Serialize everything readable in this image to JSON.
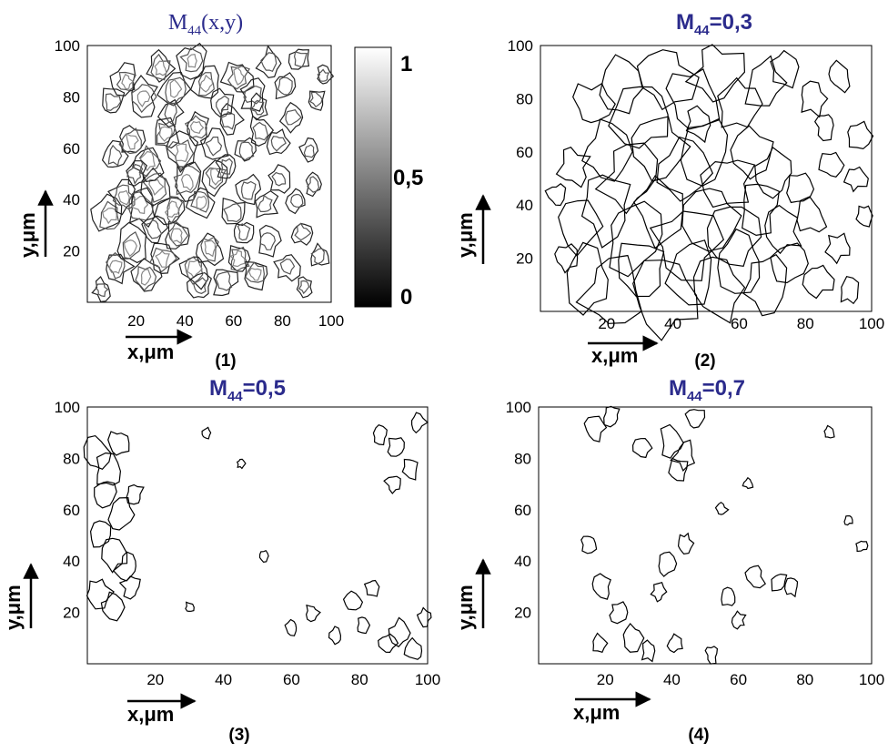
{
  "figure": {
    "panels": [
      {
        "title_base": "M",
        "title_sub": "44",
        "title_tail": "(x,y)",
        "label": "(1)"
      },
      {
        "title_base": "M",
        "title_sub": "44",
        "title_tail": "=0,3",
        "label": "(2)"
      },
      {
        "title_base": "M",
        "title_sub": "44",
        "title_tail": "=0,5",
        "label": "(3)"
      },
      {
        "title_base": "M",
        "title_sub": "44",
        "title_tail": "=0,7",
        "label": "(4)"
      }
    ],
    "xlabel": "x,μm",
    "ylabel": "y,μm",
    "colorbar": {
      "labels": [
        "1",
        "0,5",
        "0"
      ],
      "values": [
        1,
        0.5,
        0
      ]
    }
  },
  "colors": {
    "title": "#2b2b8c",
    "contour": "#000000",
    "axis": "#000000"
  },
  "chart_data": [
    {
      "type": "heatmap",
      "subtype": "contour map with grayscale colorbar",
      "title": "M44(x,y)",
      "xlabel": "x,μm",
      "ylabel": "y,μm",
      "xlim": [
        0,
        100
      ],
      "ylim": [
        0,
        100
      ],
      "xticks": [
        20,
        40,
        60,
        80,
        100
      ],
      "yticks": [
        20,
        40,
        60,
        80,
        100
      ],
      "colorbar": {
        "range": [
          0,
          1
        ],
        "ticks": [
          "0",
          "0,5",
          "1"
        ],
        "colormap": "gray"
      },
      "contour_blobs": [
        [
          12,
          14,
          2
        ],
        [
          18,
          22,
          2.4
        ],
        [
          24,
          10,
          2
        ],
        [
          31,
          17,
          2.2
        ],
        [
          37,
          26,
          2
        ],
        [
          44,
          13,
          2.3
        ],
        [
          50,
          21,
          2
        ],
        [
          56,
          8,
          1.8
        ],
        [
          62,
          17,
          2.1
        ],
        [
          69,
          11,
          2
        ],
        [
          74,
          24,
          1.8
        ],
        [
          82,
          14,
          1.7
        ],
        [
          88,
          27,
          1.6
        ],
        [
          95,
          18,
          1.4
        ],
        [
          9,
          34,
          2.2
        ],
        [
          15,
          41,
          2
        ],
        [
          22,
          38,
          2.5
        ],
        [
          28,
          45,
          2.2
        ],
        [
          35,
          36,
          2
        ],
        [
          41,
          47,
          2.4
        ],
        [
          47,
          39,
          2
        ],
        [
          53,
          49,
          2.1
        ],
        [
          60,
          35,
          1.9
        ],
        [
          66,
          44,
          1.8
        ],
        [
          73,
          38,
          1.7
        ],
        [
          79,
          48,
          1.6
        ],
        [
          86,
          40,
          1.5
        ],
        [
          93,
          46,
          1.4
        ],
        [
          11,
          57,
          1.9
        ],
        [
          18,
          63,
          2.1
        ],
        [
          25,
          55,
          2.2
        ],
        [
          32,
          66,
          2
        ],
        [
          39,
          58,
          2.3
        ],
        [
          45,
          68,
          2
        ],
        [
          52,
          61,
          1.9
        ],
        [
          58,
          71,
          1.8
        ],
        [
          65,
          59,
          1.7
        ],
        [
          71,
          67,
          1.9
        ],
        [
          78,
          62,
          1.6
        ],
        [
          84,
          72,
          1.7
        ],
        [
          91,
          59,
          1.4
        ],
        [
          10,
          78,
          1.9
        ],
        [
          16,
          86,
          2
        ],
        [
          23,
          80,
          2.2
        ],
        [
          30,
          91,
          2
        ],
        [
          36,
          83,
          2.3
        ],
        [
          43,
          94,
          2
        ],
        [
          49,
          85,
          2.1
        ],
        [
          55,
          77,
          1.8
        ],
        [
          62,
          88,
          2
        ],
        [
          68,
          81,
          1.9
        ],
        [
          75,
          93,
          1.8
        ],
        [
          81,
          84,
          1.7
        ],
        [
          87,
          95,
          1.6
        ],
        [
          94,
          79,
          1.5
        ],
        [
          6,
          5,
          1.3
        ],
        [
          27,
          29,
          1.8
        ],
        [
          46,
          6,
          1.7
        ],
        [
          64,
          27,
          1.5
        ],
        [
          89,
          6,
          1.3
        ],
        [
          20,
          50,
          1.6
        ],
        [
          57,
          53,
          1.5
        ],
        [
          34,
          74,
          1.7
        ],
        [
          70,
          76,
          1.5
        ],
        [
          97,
          88,
          1.2
        ]
      ]
    },
    {
      "type": "heatmap",
      "subtype": "iso-contour at level",
      "level": 0.3,
      "title": "M44=0,3",
      "xlabel": "x,μm",
      "ylabel": "y,μm",
      "xlim": [
        0,
        100
      ],
      "ylim": [
        0,
        100
      ],
      "xticks": [
        20,
        40,
        60,
        80,
        100
      ],
      "yticks": [
        20,
        40,
        60,
        80,
        100
      ],
      "contour_blobs": [
        [
          14,
          12,
          3
        ],
        [
          22,
          8,
          3.5
        ],
        [
          30,
          16,
          3
        ],
        [
          38,
          6,
          3.5
        ],
        [
          46,
          14,
          3
        ],
        [
          53,
          9,
          3.2
        ],
        [
          60,
          19,
          2.8
        ],
        [
          68,
          10,
          2.5
        ],
        [
          75,
          18,
          2
        ],
        [
          84,
          12,
          1.5
        ],
        [
          93,
          8,
          1.2
        ],
        [
          12,
          32,
          2.5
        ],
        [
          20,
          40,
          3.2
        ],
        [
          28,
          29,
          3.5
        ],
        [
          36,
          38,
          3
        ],
        [
          44,
          27,
          3.4
        ],
        [
          52,
          36,
          3
        ],
        [
          58,
          28,
          2.8
        ],
        [
          66,
          40,
          2.4
        ],
        [
          73,
          30,
          2
        ],
        [
          82,
          36,
          1.6
        ],
        [
          90,
          24,
          1.2
        ],
        [
          10,
          54,
          1.8
        ],
        [
          19,
          60,
          2.5
        ],
        [
          27,
          50,
          3
        ],
        [
          35,
          62,
          3.2
        ],
        [
          43,
          52,
          3
        ],
        [
          50,
          60,
          2.8
        ],
        [
          57,
          48,
          2.6
        ],
        [
          64,
          58,
          2.4
        ],
        [
          71,
          52,
          2
        ],
        [
          78,
          46,
          1.6
        ],
        [
          88,
          55,
          1.4
        ],
        [
          95,
          50,
          1.2
        ],
        [
          16,
          78,
          2
        ],
        [
          24,
          84,
          2.6
        ],
        [
          31,
          74,
          3
        ],
        [
          38,
          88,
          3.2
        ],
        [
          46,
          80,
          3
        ],
        [
          53,
          90,
          2.6
        ],
        [
          60,
          78,
          2.4
        ],
        [
          67,
          86,
          2.2
        ],
        [
          74,
          92,
          1.8
        ],
        [
          82,
          80,
          1.5
        ],
        [
          90,
          88,
          1.3
        ],
        [
          96,
          66,
          1.2
        ],
        [
          8,
          20,
          1.2
        ],
        [
          5,
          44,
          1
        ],
        [
          98,
          36,
          1
        ],
        [
          48,
          70,
          1.5
        ],
        [
          86,
          70,
          1.2
        ]
      ]
    },
    {
      "type": "heatmap",
      "subtype": "iso-contour at level",
      "level": 0.5,
      "title": "M44=0,5",
      "xlabel": "x,μm",
      "ylabel": "y,μm",
      "xlim": [
        0,
        100
      ],
      "ylim": [
        0,
        100
      ],
      "xticks": [
        20,
        40,
        60,
        80,
        100
      ],
      "yticks": [
        20,
        40,
        60,
        80,
        100
      ],
      "contour_blobs": [
        [
          3,
          82,
          1.6
        ],
        [
          6,
          75,
          1.5
        ],
        [
          9,
          86,
          1.2
        ],
        [
          5,
          67,
          1.3
        ],
        [
          10,
          58,
          1.4
        ],
        [
          4,
          50,
          1.2
        ],
        [
          8,
          43,
          1.4
        ],
        [
          12,
          38,
          1.2
        ],
        [
          3,
          28,
          1.3
        ],
        [
          7,
          22,
          1.2
        ],
        [
          14,
          66,
          1
        ],
        [
          13,
          30,
          1
        ],
        [
          97,
          94,
          0.9
        ],
        [
          91,
          84,
          1
        ],
        [
          86,
          89,
          0.8
        ],
        [
          95,
          76,
          0.9
        ],
        [
          90,
          70,
          0.8
        ],
        [
          78,
          24,
          0.9
        ],
        [
          84,
          30,
          0.8
        ],
        [
          92,
          12,
          1.2
        ],
        [
          96,
          5,
          1
        ],
        [
          88,
          8,
          0.9
        ],
        [
          99,
          18,
          0.8
        ],
        [
          73,
          11,
          0.7
        ],
        [
          66,
          20,
          0.7
        ],
        [
          60,
          14,
          0.7
        ],
        [
          81,
          15,
          0.8
        ],
        [
          35,
          90,
          0.5
        ],
        [
          52,
          42,
          0.5
        ],
        [
          30,
          22,
          0.5
        ],
        [
          45,
          78,
          0.4
        ]
      ]
    },
    {
      "type": "heatmap",
      "subtype": "iso-contour at level",
      "level": 0.7,
      "title": "M44=0,7",
      "xlabel": "x,μm",
      "ylabel": "y,μm",
      "xlim": [
        0,
        100
      ],
      "ylim": [
        0,
        100
      ],
      "xticks": [
        20,
        40,
        60,
        80,
        100
      ],
      "yticks": [
        20,
        40,
        60,
        80,
        100
      ],
      "contour_blobs": [
        [
          17,
          92,
          1.2
        ],
        [
          22,
          97,
          1
        ],
        [
          40,
          86,
          1.4
        ],
        [
          44,
          81,
          1.3
        ],
        [
          42,
          76,
          1.1
        ],
        [
          47,
          96,
          1
        ],
        [
          31,
          84,
          1
        ],
        [
          15,
          47,
          0.9
        ],
        [
          19,
          30,
          1.1
        ],
        [
          38,
          39,
          1
        ],
        [
          44,
          47,
          0.9
        ],
        [
          36,
          28,
          0.8
        ],
        [
          57,
          26,
          0.8
        ],
        [
          65,
          34,
          1
        ],
        [
          72,
          32,
          0.9
        ],
        [
          76,
          30,
          0.8
        ],
        [
          24,
          20,
          1
        ],
        [
          28,
          10,
          1.1
        ],
        [
          33,
          5,
          0.9
        ],
        [
          41,
          8,
          0.8
        ],
        [
          52,
          4,
          0.8
        ],
        [
          60,
          17,
          0.7
        ],
        [
          18,
          8,
          0.8
        ],
        [
          55,
          60,
          0.6
        ],
        [
          87,
          90,
          0.6
        ],
        [
          93,
          56,
          0.5
        ],
        [
          97,
          46,
          0.6
        ],
        [
          63,
          70,
          0.5
        ]
      ]
    }
  ]
}
